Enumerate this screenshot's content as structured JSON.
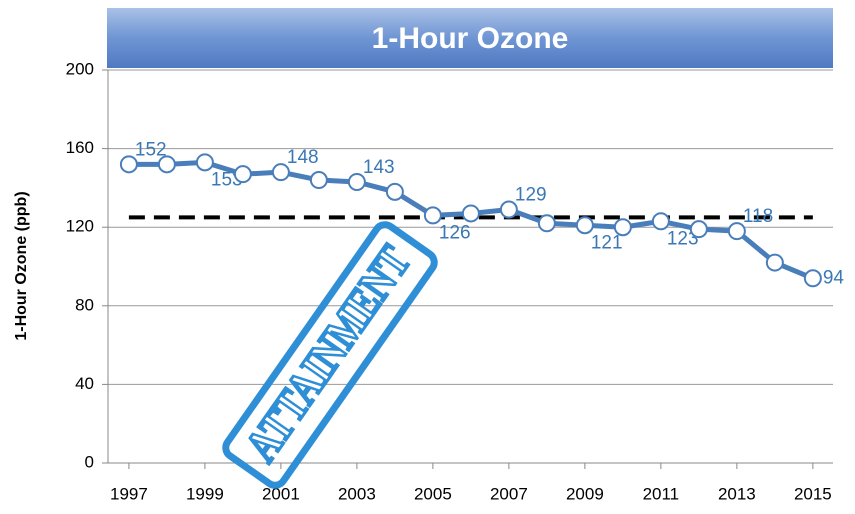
{
  "chart_data": {
    "type": "line",
    "title": "1-Hour Ozone",
    "y_label": "1-Hour Ozone (ppb)",
    "x": [
      1997,
      1998,
      1999,
      2000,
      2001,
      2002,
      2003,
      2004,
      2005,
      2006,
      2007,
      2008,
      2009,
      2010,
      2011,
      2012,
      2013,
      2014,
      2015
    ],
    "series": [
      {
        "name": "1-Hour Ozone",
        "color": "#4a7ebb",
        "values": [
          152,
          152,
          153,
          147,
          148,
          144,
          143,
          138,
          126,
          127,
          129,
          122,
          121,
          120,
          123,
          119,
          118,
          102,
          94
        ],
        "value_labels": [
          "152",
          null,
          "153",
          null,
          "148",
          null,
          "143",
          null,
          "126",
          null,
          "129",
          null,
          "121",
          null,
          "123",
          null,
          "118",
          null,
          "94"
        ]
      }
    ],
    "reference_line": {
      "value": 125,
      "color": "#000000"
    },
    "annotation": "ATTAINMENT",
    "xlim": [
      1996.45,
      2015.53
    ],
    "xticks": [
      1997,
      1999,
      2001,
      2003,
      2005,
      2007,
      2009,
      2011,
      2013,
      2015
    ],
    "ylim": [
      0,
      200
    ],
    "yticks": [
      0,
      40,
      80,
      120,
      160,
      200
    ],
    "grid": true
  }
}
